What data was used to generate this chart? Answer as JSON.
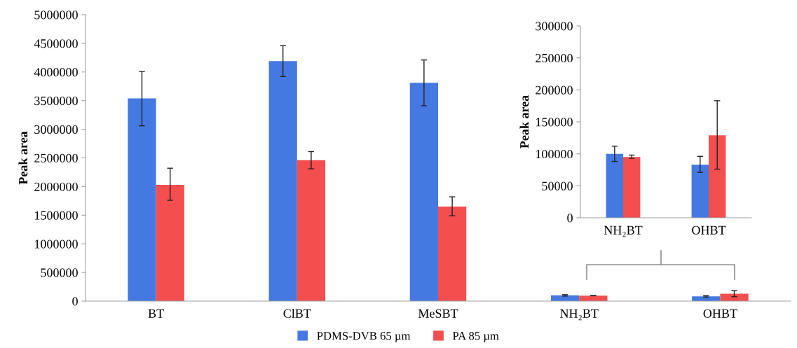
{
  "chart_data": [
    {
      "type": "bar",
      "ylabel": "Peak area",
      "categories": [
        "BT",
        "ClBT",
        "MeSBT",
        "NH₂BT",
        "OHBT"
      ],
      "ylim": [
        0,
        5000000
      ],
      "yticks": [
        0,
        500000,
        1000000,
        1500000,
        2000000,
        2500000,
        3000000,
        3500000,
        4000000,
        4500000,
        5000000
      ],
      "grid": false,
      "legend": "bottom",
      "series": [
        {
          "name": "PDMS-DVB 65 µm",
          "color": "#4479e2",
          "values": [
            3540000,
            4190000,
            3810000,
            100000,
            83000
          ],
          "errors": [
            [
              3060000,
              4010000
            ],
            [
              3920000,
              4460000
            ],
            [
              3410000,
              4210000
            ],
            [
              88000,
              112000
            ],
            [
              71000,
              96000
            ]
          ]
        },
        {
          "name": "PA 85 µm",
          "color": "#f44e4e",
          "values": [
            2030000,
            2460000,
            1650000,
            95000,
            129000
          ],
          "errors": [
            [
              1760000,
              2320000
            ],
            [
              2310000,
              2610000
            ],
            [
              1490000,
              1820000
            ],
            [
              93000,
              98000
            ],
            [
              76000,
              183000
            ]
          ]
        }
      ]
    },
    {
      "type": "bar",
      "ylabel": "Peak area",
      "categories": [
        "NH₂BT",
        "OHBT"
      ],
      "ylim": [
        0,
        300000
      ],
      "yticks": [
        0,
        50000,
        100000,
        150000,
        200000,
        250000,
        300000
      ],
      "grid": false,
      "series": [
        {
          "color": "#4479e2",
          "values": [
            100000,
            83000
          ],
          "errors": [
            [
              88000,
              112000
            ],
            [
              71000,
              96000
            ]
          ]
        },
        {
          "color": "#f44e4e",
          "values": [
            95000,
            129000
          ],
          "errors": [
            [
              93000,
              98000
            ],
            [
              76000,
              183000
            ]
          ]
        }
      ]
    }
  ]
}
